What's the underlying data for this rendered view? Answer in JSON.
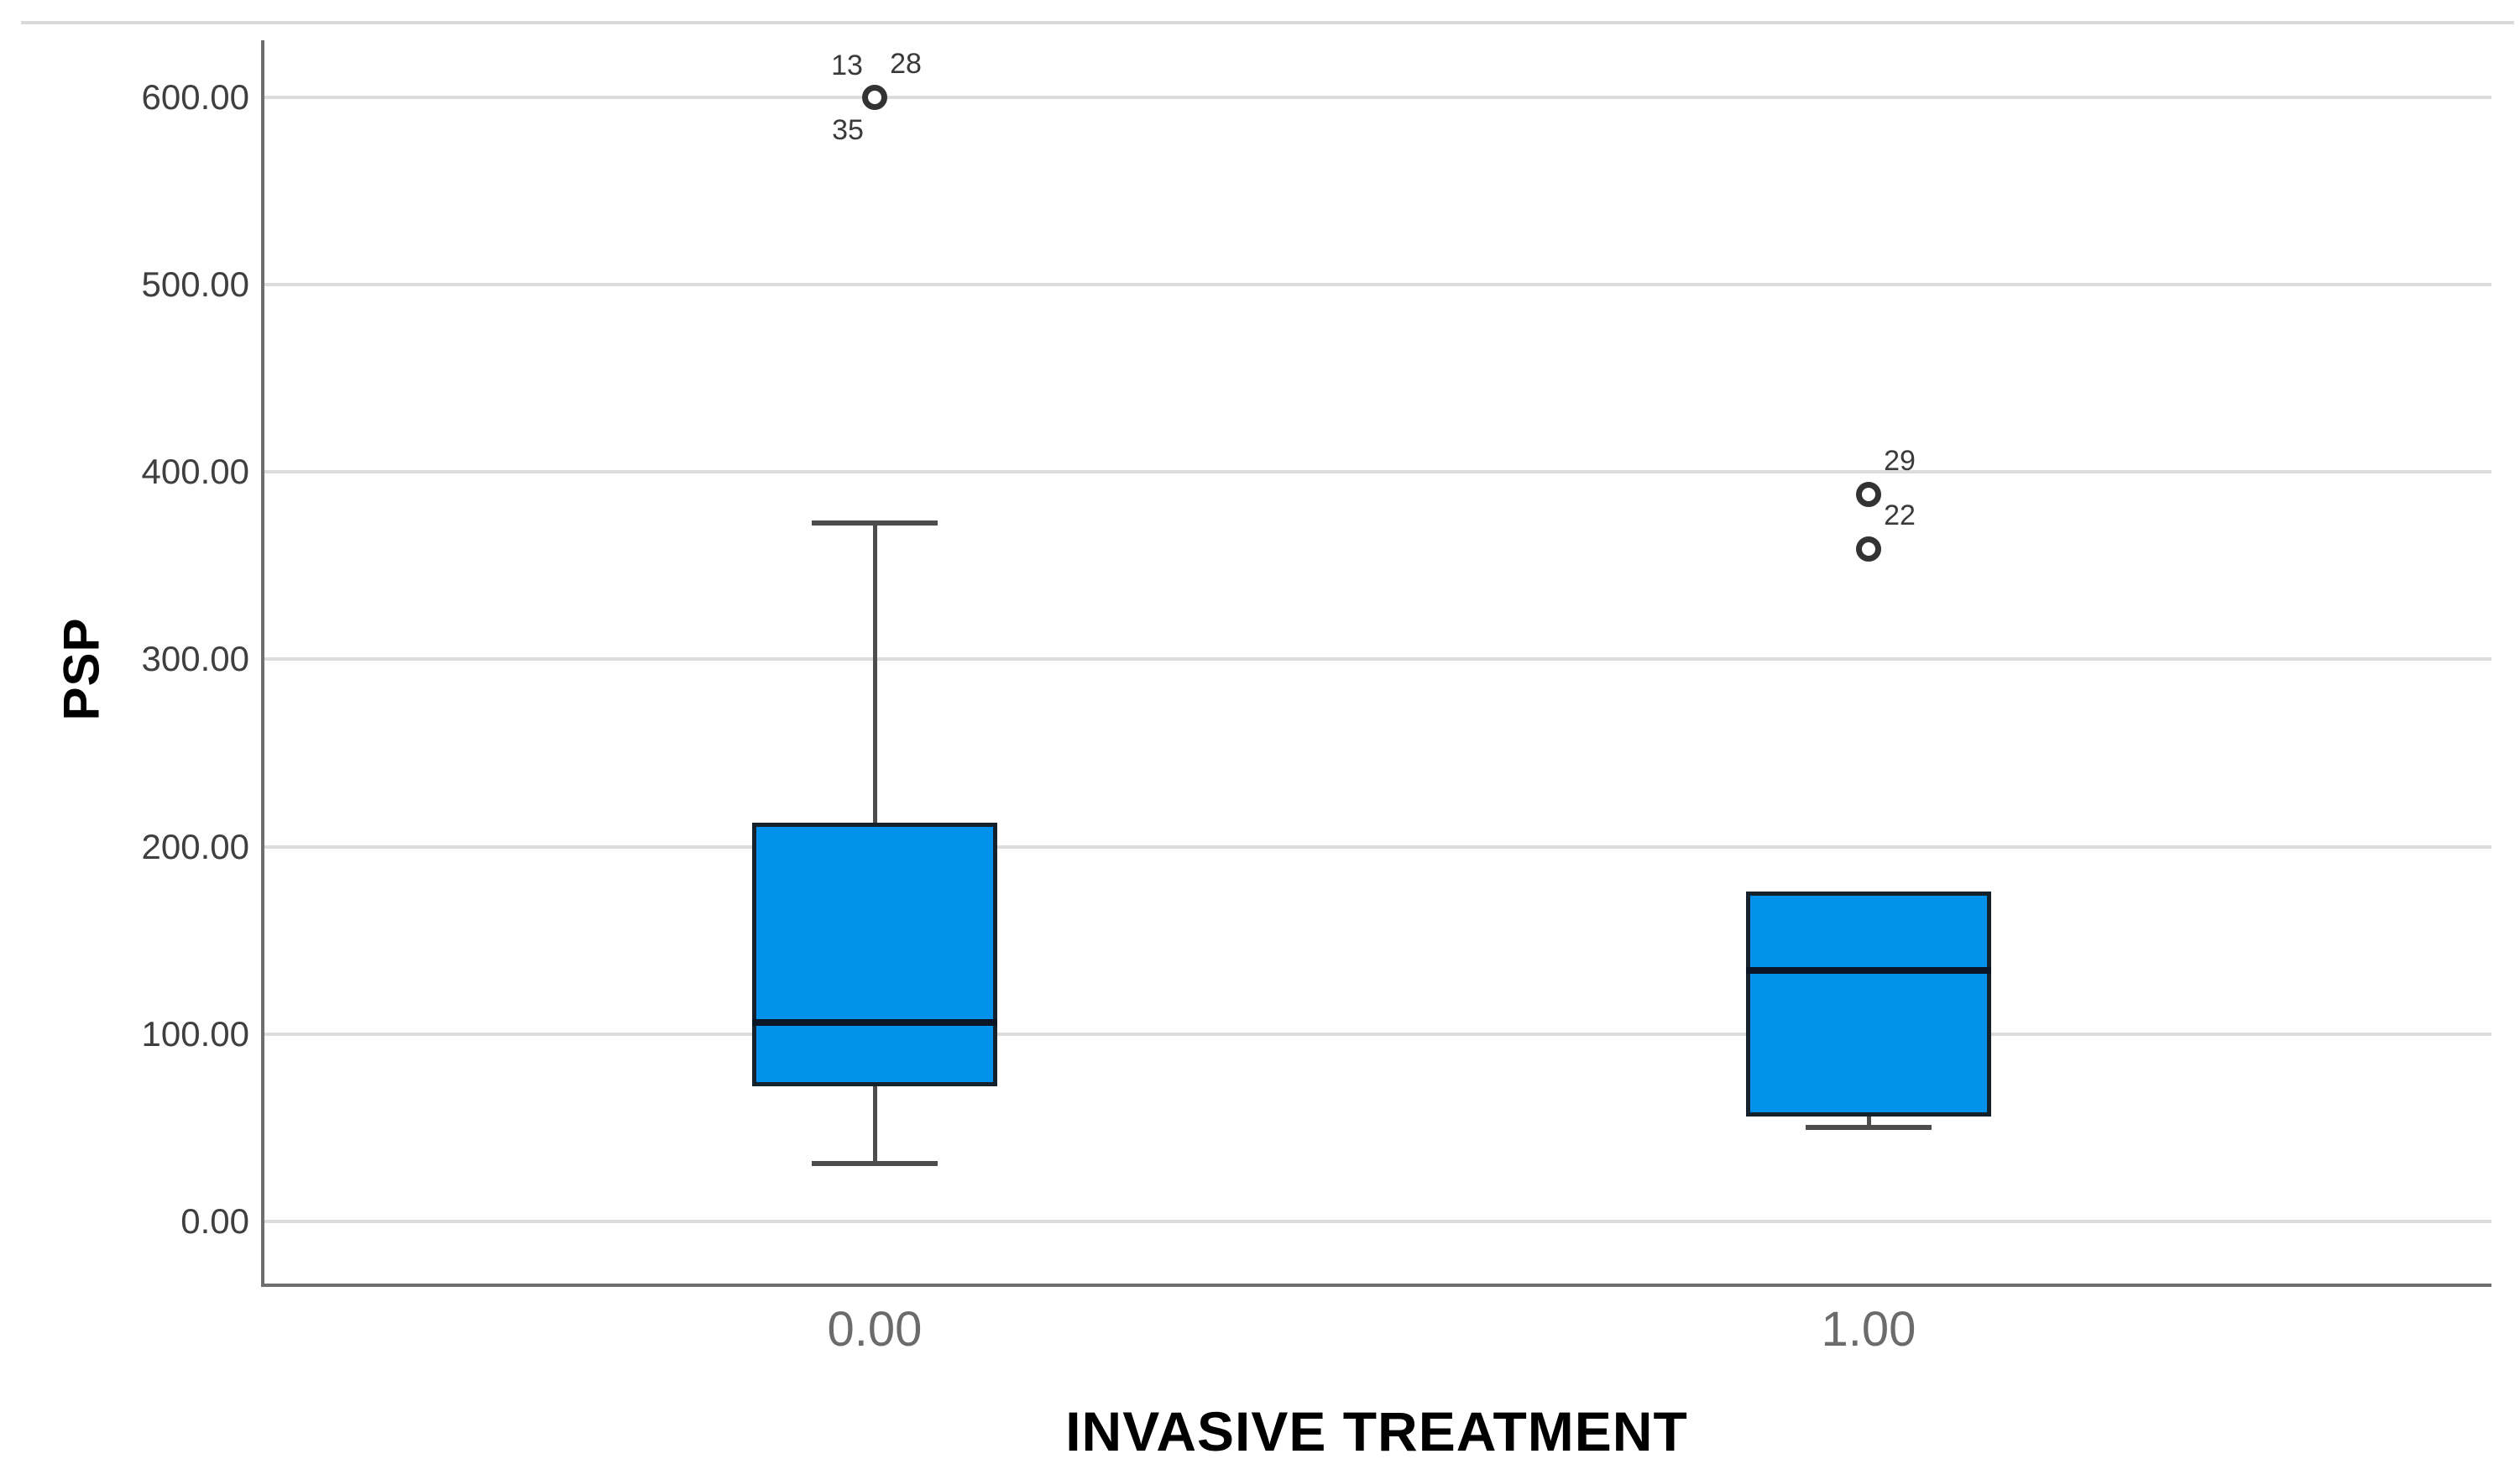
{
  "chart_data": {
    "type": "boxplot",
    "title": "",
    "xlabel": "INVASIVE TREATMENT",
    "ylabel": "PSP",
    "categories": [
      "0.00",
      "1.00"
    ],
    "y_axis": {
      "tick_values": [
        0,
        100,
        200,
        300,
        400,
        500,
        600
      ],
      "tick_labels": [
        "0.00",
        "100.00",
        "200.00",
        "300.00",
        "400.00",
        "500.00",
        "600.00"
      ],
      "range": [
        -33,
        630
      ],
      "grid": true,
      "legend_position": "none"
    },
    "boxes": [
      {
        "category": "0.00",
        "whisker_low": 31,
        "q1": 72,
        "median": 106,
        "q3": 213,
        "whisker_high": 373,
        "outliers": [
          {
            "value": 600,
            "labels": [
              {
                "text": "13",
                "pos": "above-left"
              },
              {
                "text": "28",
                "pos": "above-right"
              },
              {
                "text": "35",
                "pos": "below-left"
              }
            ]
          }
        ]
      },
      {
        "category": "1.00",
        "whisker_low": 50,
        "q1": 56,
        "median": 134,
        "q3": 176,
        "whisker_high": 176,
        "outliers": [
          {
            "value": 388,
            "labels": [
              {
                "text": "29",
                "pos": "above-right"
              }
            ]
          },
          {
            "value": 359,
            "labels": [
              {
                "text": "22",
                "pos": "above-right"
              }
            ]
          }
        ]
      }
    ],
    "colors": {
      "box_fill": "#0292ec",
      "box_border": "#13222c",
      "median": "#0a1626",
      "whisker": "#4d4d4d",
      "gridline": "#dcdcdc",
      "axis_line": "#6e6e6e",
      "y_tick_label": "#3f3f3f",
      "x_tick_label": "#6b6b6b",
      "outlier_stroke": "#333333",
      "outlier_label": "#3a3a3a",
      "frame_line": "#d9d9d9"
    }
  }
}
